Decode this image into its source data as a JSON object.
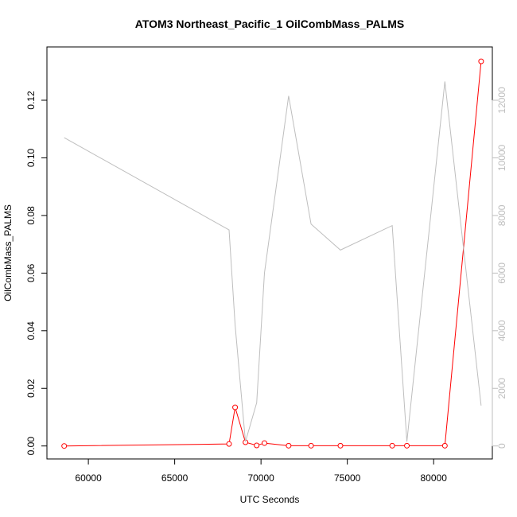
{
  "chart_data": {
    "type": "line",
    "title": "ATOM3 Northeast_Pacific_1 OilCombMass_PALMS",
    "xlabel": "UTC Seconds",
    "ylabel": "OilCombMass_PALMS",
    "xlim": [
      57600,
      83400
    ],
    "ylim": [
      -0.0045,
      0.1385
    ],
    "y2lim": [
      -450,
      13850
    ],
    "x_ticks": [
      60000,
      65000,
      70000,
      75000,
      80000
    ],
    "y_ticks": [
      0.0,
      0.02,
      0.04,
      0.06,
      0.08,
      0.1,
      0.12
    ],
    "y2_ticks": [
      0,
      2000,
      4000,
      6000,
      8000,
      10000,
      12000
    ],
    "grid": false,
    "series": [
      {
        "axis": "left",
        "color": "#ff0000",
        "marker": "open-circle",
        "x": [
          58600,
          68150,
          68500,
          69100,
          69750,
          70200,
          71600,
          72900,
          74600,
          77600,
          78450,
          80650,
          82750
        ],
        "y": [
          0.0,
          0.0007,
          0.0134,
          0.0013,
          0.0002,
          0.001,
          0.0001,
          0.0001,
          0.0001,
          0.0001,
          0.0001,
          0.0001,
          0.1335
        ]
      },
      {
        "axis": "right",
        "color": "#bebebe",
        "marker": "none",
        "x": [
          58600,
          68150,
          68500,
          69100,
          69750,
          70200,
          71600,
          72900,
          74600,
          77600,
          78450,
          80650,
          82750
        ],
        "y": [
          10700,
          7500,
          4200,
          150,
          1500,
          6000,
          12150,
          7700,
          6800,
          7650,
          150,
          12650,
          1400
        ]
      }
    ]
  }
}
